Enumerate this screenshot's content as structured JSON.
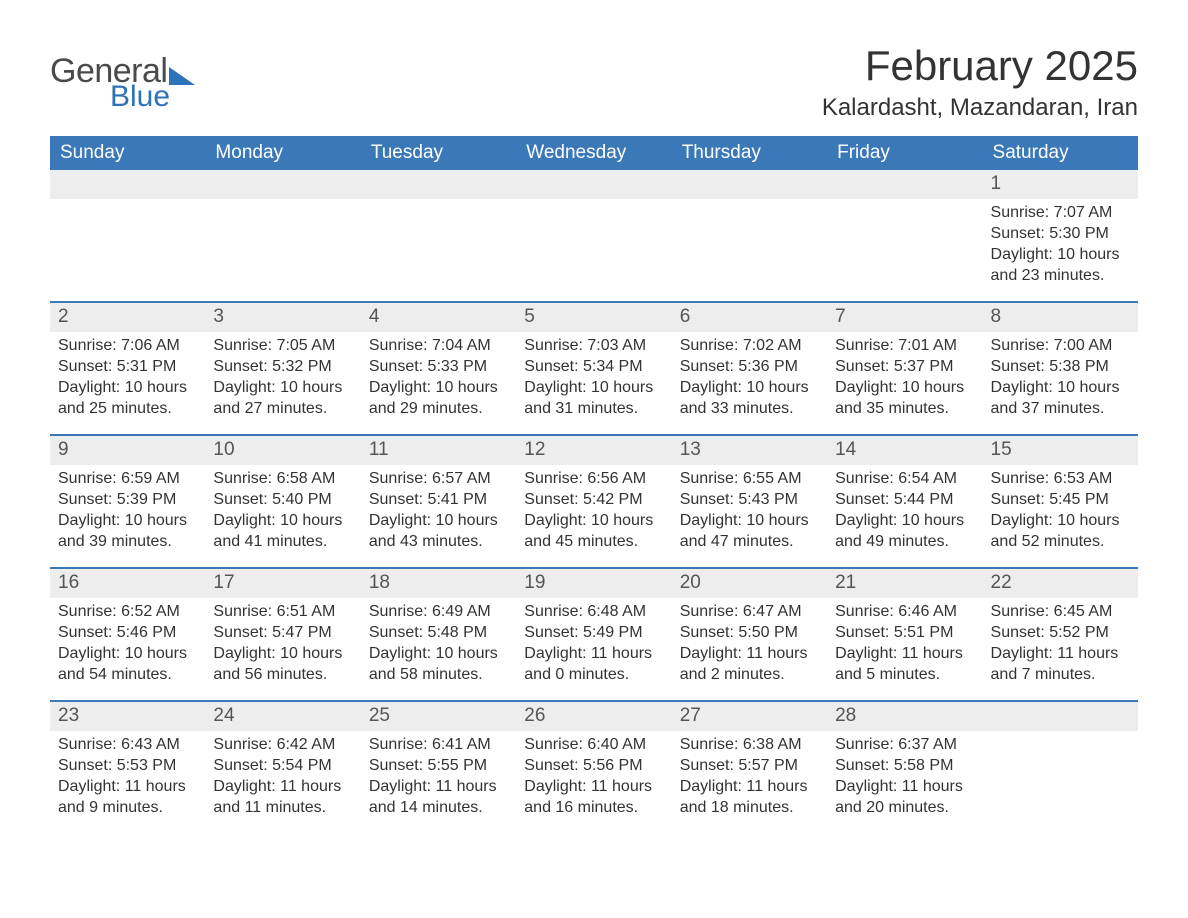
{
  "brand": {
    "word1": "General",
    "word2": "Blue",
    "brand_color": "#2d73b8"
  },
  "header": {
    "title": "February 2025",
    "location": "Kalardasht, Mazandaran, Iran"
  },
  "colors": {
    "header_bg": "#3a78b8",
    "header_text": "#ffffff",
    "daynum_bg": "#ededed",
    "separator": "#3a78b8",
    "body_text": "#333333"
  },
  "weekdays": [
    "Sunday",
    "Monday",
    "Tuesday",
    "Wednesday",
    "Thursday",
    "Friday",
    "Saturday"
  ],
  "labels": {
    "sunrise": "Sunrise:",
    "sunset": "Sunset:",
    "daylight": "Daylight:"
  },
  "weeks": [
    [
      null,
      null,
      null,
      null,
      null,
      null,
      {
        "n": "1",
        "sunrise": "7:07 AM",
        "sunset": "5:30 PM",
        "daylight": "10 hours and 23 minutes."
      }
    ],
    [
      {
        "n": "2",
        "sunrise": "7:06 AM",
        "sunset": "5:31 PM",
        "daylight": "10 hours and 25 minutes."
      },
      {
        "n": "3",
        "sunrise": "7:05 AM",
        "sunset": "5:32 PM",
        "daylight": "10 hours and 27 minutes."
      },
      {
        "n": "4",
        "sunrise": "7:04 AM",
        "sunset": "5:33 PM",
        "daylight": "10 hours and 29 minutes."
      },
      {
        "n": "5",
        "sunrise": "7:03 AM",
        "sunset": "5:34 PM",
        "daylight": "10 hours and 31 minutes."
      },
      {
        "n": "6",
        "sunrise": "7:02 AM",
        "sunset": "5:36 PM",
        "daylight": "10 hours and 33 minutes."
      },
      {
        "n": "7",
        "sunrise": "7:01 AM",
        "sunset": "5:37 PM",
        "daylight": "10 hours and 35 minutes."
      },
      {
        "n": "8",
        "sunrise": "7:00 AM",
        "sunset": "5:38 PM",
        "daylight": "10 hours and 37 minutes."
      }
    ],
    [
      {
        "n": "9",
        "sunrise": "6:59 AM",
        "sunset": "5:39 PM",
        "daylight": "10 hours and 39 minutes."
      },
      {
        "n": "10",
        "sunrise": "6:58 AM",
        "sunset": "5:40 PM",
        "daylight": "10 hours and 41 minutes."
      },
      {
        "n": "11",
        "sunrise": "6:57 AM",
        "sunset": "5:41 PM",
        "daylight": "10 hours and 43 minutes."
      },
      {
        "n": "12",
        "sunrise": "6:56 AM",
        "sunset": "5:42 PM",
        "daylight": "10 hours and 45 minutes."
      },
      {
        "n": "13",
        "sunrise": "6:55 AM",
        "sunset": "5:43 PM",
        "daylight": "10 hours and 47 minutes."
      },
      {
        "n": "14",
        "sunrise": "6:54 AM",
        "sunset": "5:44 PM",
        "daylight": "10 hours and 49 minutes."
      },
      {
        "n": "15",
        "sunrise": "6:53 AM",
        "sunset": "5:45 PM",
        "daylight": "10 hours and 52 minutes."
      }
    ],
    [
      {
        "n": "16",
        "sunrise": "6:52 AM",
        "sunset": "5:46 PM",
        "daylight": "10 hours and 54 minutes."
      },
      {
        "n": "17",
        "sunrise": "6:51 AM",
        "sunset": "5:47 PM",
        "daylight": "10 hours and 56 minutes."
      },
      {
        "n": "18",
        "sunrise": "6:49 AM",
        "sunset": "5:48 PM",
        "daylight": "10 hours and 58 minutes."
      },
      {
        "n": "19",
        "sunrise": "6:48 AM",
        "sunset": "5:49 PM",
        "daylight": "11 hours and 0 minutes."
      },
      {
        "n": "20",
        "sunrise": "6:47 AM",
        "sunset": "5:50 PM",
        "daylight": "11 hours and 2 minutes."
      },
      {
        "n": "21",
        "sunrise": "6:46 AM",
        "sunset": "5:51 PM",
        "daylight": "11 hours and 5 minutes."
      },
      {
        "n": "22",
        "sunrise": "6:45 AM",
        "sunset": "5:52 PM",
        "daylight": "11 hours and 7 minutes."
      }
    ],
    [
      {
        "n": "23",
        "sunrise": "6:43 AM",
        "sunset": "5:53 PM",
        "daylight": "11 hours and 9 minutes."
      },
      {
        "n": "24",
        "sunrise": "6:42 AM",
        "sunset": "5:54 PM",
        "daylight": "11 hours and 11 minutes."
      },
      {
        "n": "25",
        "sunrise": "6:41 AM",
        "sunset": "5:55 PM",
        "daylight": "11 hours and 14 minutes."
      },
      {
        "n": "26",
        "sunrise": "6:40 AM",
        "sunset": "5:56 PM",
        "daylight": "11 hours and 16 minutes."
      },
      {
        "n": "27",
        "sunrise": "6:38 AM",
        "sunset": "5:57 PM",
        "daylight": "11 hours and 18 minutes."
      },
      {
        "n": "28",
        "sunrise": "6:37 AM",
        "sunset": "5:58 PM",
        "daylight": "11 hours and 20 minutes."
      },
      null
    ]
  ]
}
